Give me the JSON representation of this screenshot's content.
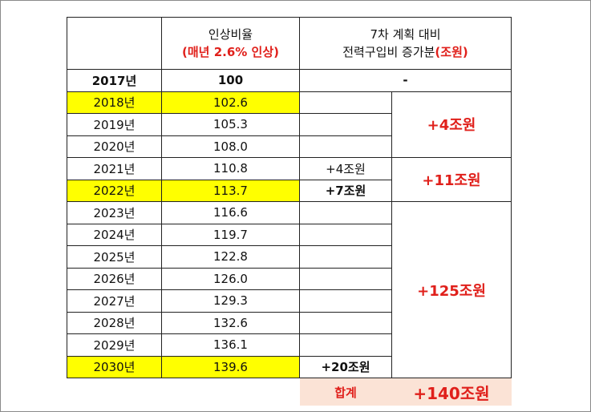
{
  "table": {
    "header": {
      "rate": [
        "인상비율",
        "(매년 2.6% 인상)"
      ],
      "increase": [
        "7차 계획 대비",
        "전력구입비 증가분",
        "(조원)"
      ]
    },
    "rows": [
      {
        "year": "2017년",
        "rate": "100",
        "annual": "-"
      },
      {
        "year": "2018년",
        "rate": "102.6"
      },
      {
        "year": "2019년",
        "rate": "105.3"
      },
      {
        "year": "2020년",
        "rate": "108.0"
      },
      {
        "year": "2021년",
        "rate": "110.8",
        "annual": "+4조원"
      },
      {
        "year": "2022년",
        "rate": "113.7",
        "annual": "+7조원"
      },
      {
        "year": "2023년",
        "rate": "116.6"
      },
      {
        "year": "2024년",
        "rate": "119.7"
      },
      {
        "year": "2025년",
        "rate": "122.8"
      },
      {
        "year": "2026년",
        "rate": "126.0"
      },
      {
        "year": "2027년",
        "rate": "129.3"
      },
      {
        "year": "2028년",
        "rate": "132.6"
      },
      {
        "year": "2029년",
        "rate": "136.1"
      },
      {
        "year": "2030년",
        "rate": "139.6",
        "annual": "+20조원"
      }
    ],
    "groups": [
      "+4조원",
      "+11조원",
      "+125조원"
    ],
    "total": {
      "label": "합계",
      "value": "+140조원"
    }
  }
}
